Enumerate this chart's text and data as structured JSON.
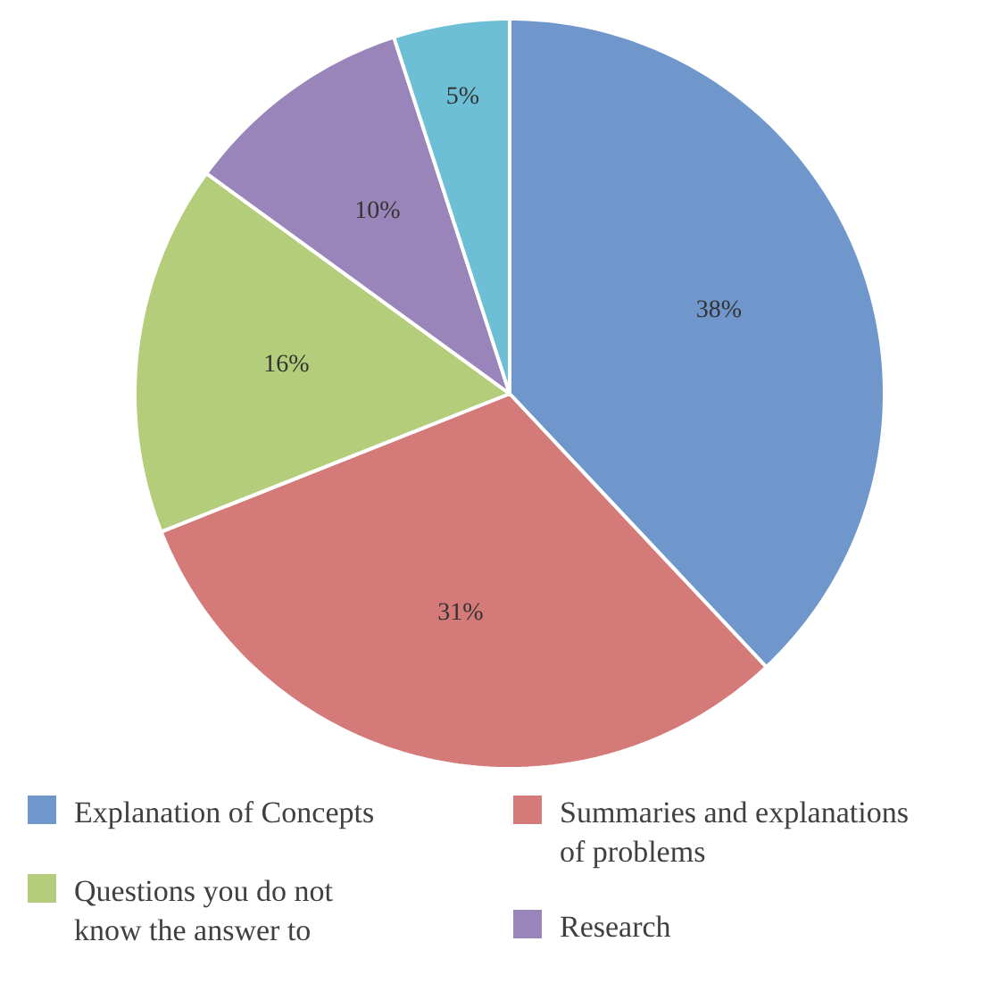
{
  "chart_data": {
    "type": "pie",
    "categories": [
      "Explanation of Concepts",
      "Summaries and explanations of problems",
      "Questions you do not know the answer to",
      "Research",
      null
    ],
    "values": [
      38,
      31,
      16,
      10,
      5
    ],
    "colors": [
      "#7097cc",
      "#d47a78",
      "#b3cd7a",
      "#9a85bb",
      "#6cbfd5"
    ],
    "value_labels": [
      "38%",
      "31%",
      "16%",
      "10%",
      "5%"
    ],
    "legend": "bottom"
  }
}
